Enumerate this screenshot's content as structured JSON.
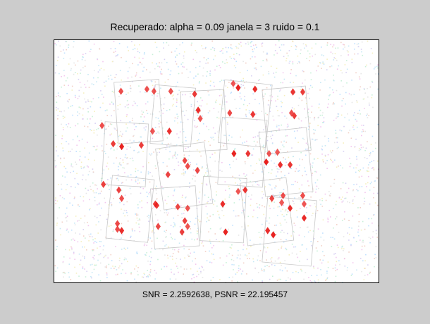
{
  "window": {
    "background_color": "#cccccc"
  },
  "figure": {
    "title": "Recuperado: alpha = 0.09 janela = 3 ruido = 0.1",
    "xlabel": "SNR = 2.2592638, PSNR = 22.195457"
  },
  "image": {
    "description_icon": "noisy-image-icon",
    "background_color": "#ffffff",
    "accent_color": "#e8201e"
  }
}
